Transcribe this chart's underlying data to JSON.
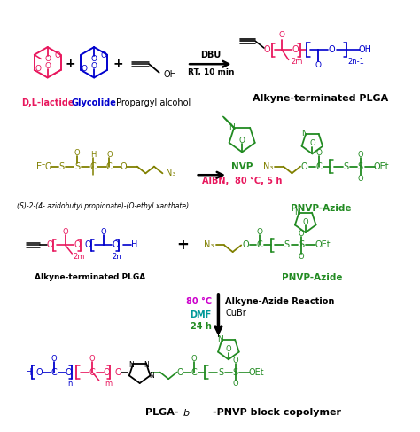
{
  "bg_color": "#ffffff",
  "colors": {
    "red": "#e8175d",
    "blue": "#0000cd",
    "dark_green": "#228B22",
    "olive": "#808000",
    "black": "#000000",
    "magenta": "#cc00cc",
    "cyan": "#009999",
    "yellow_green": "#6B8E00"
  },
  "labels": {
    "lactide": "D,L-lactide",
    "glycolide": "Glycolide",
    "propargyl": "Propargyl alcohol",
    "dbu": "DBU",
    "rt": "RT, 10 min",
    "product1": "Alkyne-terminated PLGA",
    "raft": "(S)-2-(4- azidobutyl propionate)-(O-ethyl xanthate)",
    "nvp": "NVP",
    "aibn": "AIBN,  80 °C, 5 h",
    "pnvp_azide": "PNVP-Azide",
    "alkyne_plga": "Alkyne-terminated PLGA",
    "pnvp_azide2": "PNVP-Azide",
    "temp": "80 °C",
    "dmf": "DMF",
    "time": "24 h",
    "reaction": "Alkyne-Azide Reaction",
    "cubr": "CuBr",
    "final": "PLGA-b-PNVP block copolymer"
  }
}
